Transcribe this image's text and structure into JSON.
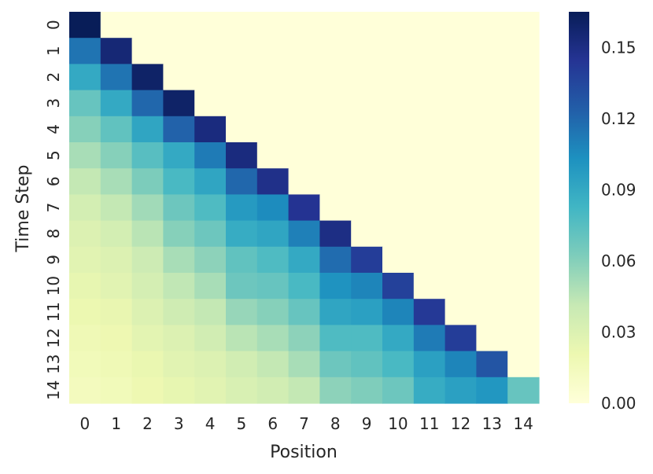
{
  "chart_data": {
    "type": "heatmap",
    "title": "",
    "xlabel": "Position",
    "ylabel": "Time Step",
    "x_categories": [
      "0",
      "1",
      "2",
      "3",
      "4",
      "5",
      "6",
      "7",
      "8",
      "9",
      "10",
      "11",
      "12",
      "13",
      "14"
    ],
    "y_categories": [
      "0",
      "1",
      "2",
      "3",
      "4",
      "5",
      "6",
      "7",
      "8",
      "9",
      "10",
      "11",
      "12",
      "13",
      "14"
    ],
    "colormap": "YlGnBu",
    "value_range": [
      0,
      0.165
    ],
    "colorbar_ticks": [
      "0.00",
      "0.03",
      "0.06",
      "0.09",
      "0.12",
      "0.15"
    ],
    "values": [
      [
        0.165,
        0,
        0,
        0,
        0,
        0,
        0,
        0,
        0,
        0,
        0,
        0,
        0,
        0,
        0
      ],
      [
        0.115,
        0.155,
        0,
        0,
        0,
        0,
        0,
        0,
        0,
        0,
        0,
        0,
        0,
        0,
        0
      ],
      [
        0.09,
        0.115,
        0.16,
        0,
        0,
        0,
        0,
        0,
        0,
        0,
        0,
        0,
        0,
        0,
        0
      ],
      [
        0.07,
        0.09,
        0.12,
        0.16,
        0,
        0,
        0,
        0,
        0,
        0,
        0,
        0,
        0,
        0,
        0
      ],
      [
        0.06,
        0.072,
        0.092,
        0.122,
        0.152,
        0,
        0,
        0,
        0,
        0,
        0,
        0,
        0,
        0,
        0
      ],
      [
        0.05,
        0.06,
        0.075,
        0.09,
        0.112,
        0.152,
        0,
        0,
        0,
        0,
        0,
        0,
        0,
        0,
        0
      ],
      [
        0.042,
        0.05,
        0.063,
        0.08,
        0.092,
        0.12,
        0.148,
        0,
        0,
        0,
        0,
        0,
        0,
        0,
        0
      ],
      [
        0.035,
        0.042,
        0.052,
        0.068,
        0.078,
        0.098,
        0.105,
        0.145,
        0,
        0,
        0,
        0,
        0,
        0,
        0
      ],
      [
        0.03,
        0.035,
        0.045,
        0.06,
        0.068,
        0.088,
        0.092,
        0.11,
        0.15,
        0,
        0,
        0,
        0,
        0,
        0
      ],
      [
        0.027,
        0.03,
        0.038,
        0.05,
        0.058,
        0.072,
        0.078,
        0.09,
        0.118,
        0.14,
        0,
        0,
        0,
        0,
        0
      ],
      [
        0.024,
        0.027,
        0.034,
        0.043,
        0.05,
        0.068,
        0.07,
        0.08,
        0.102,
        0.108,
        0.138,
        0,
        0,
        0,
        0
      ],
      [
        0.021,
        0.023,
        0.03,
        0.037,
        0.042,
        0.055,
        0.06,
        0.07,
        0.092,
        0.095,
        0.108,
        0.142,
        0,
        0,
        0
      ],
      [
        0.018,
        0.02,
        0.026,
        0.03,
        0.036,
        0.045,
        0.05,
        0.058,
        0.078,
        0.078,
        0.09,
        0.112,
        0.14,
        0,
        0
      ],
      [
        0.016,
        0.018,
        0.022,
        0.027,
        0.03,
        0.036,
        0.042,
        0.05,
        0.068,
        0.072,
        0.08,
        0.095,
        0.108,
        0.128,
        0
      ],
      [
        0.014,
        0.016,
        0.02,
        0.024,
        0.027,
        0.032,
        0.036,
        0.042,
        0.058,
        0.062,
        0.068,
        0.088,
        0.095,
        0.1,
        0.07
      ]
    ]
  }
}
